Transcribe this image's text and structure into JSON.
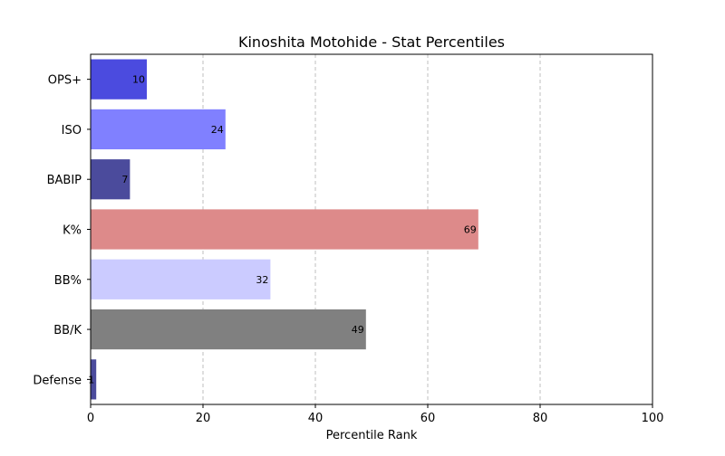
{
  "chart_data": {
    "type": "bar",
    "orientation": "horizontal",
    "title": "Kinoshita Motohide - Stat Percentiles",
    "xlabel": "Percentile Rank",
    "ylabel": "",
    "xlim": [
      0,
      100
    ],
    "x_ticks": [
      0,
      20,
      40,
      60,
      80,
      100
    ],
    "grid": "vertical dashed",
    "categories": [
      "OPS+",
      "ISO",
      "BABIP",
      "K%",
      "BB%",
      "BB/K",
      "Defense"
    ],
    "values": [
      10,
      24,
      7,
      69,
      32,
      49,
      1
    ],
    "colors": [
      "#4b4bdf",
      "#8080ff",
      "#4b4b9c",
      "#dd8a8a",
      "#cbcbff",
      "#808080",
      "#4b4b9c"
    ]
  }
}
